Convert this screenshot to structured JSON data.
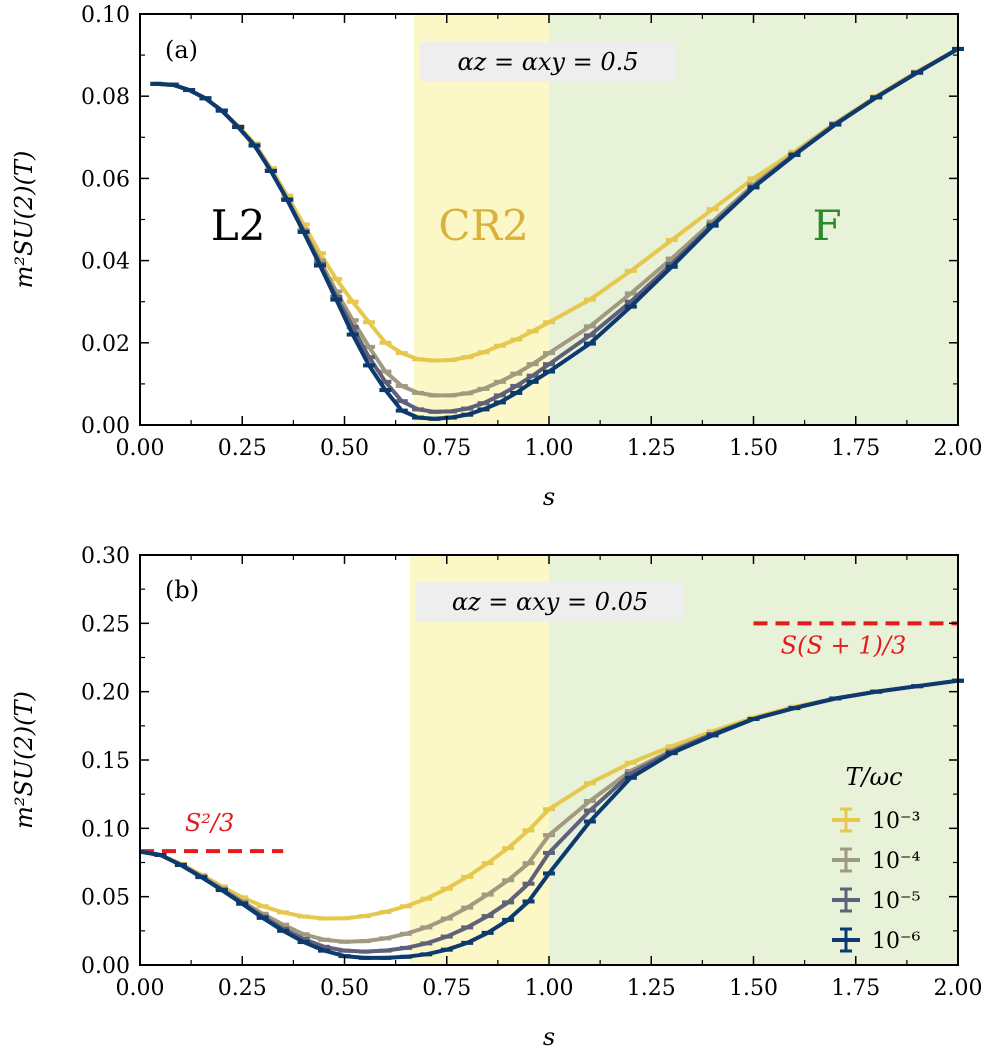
{
  "chart_data": [
    {
      "type": "line",
      "panel_label": "(a)",
      "parameter_label": "αz = αxy = 0.5",
      "xlabel": "s",
      "ylabel": "m²SU(2)(T)",
      "xlim": [
        0.0,
        2.0
      ],
      "ylim": [
        0.0,
        0.1
      ],
      "xticks": [
        "0.00",
        "0.25",
        "0.50",
        "0.75",
        "1.00",
        "1.25",
        "1.50",
        "1.75",
        "2.00"
      ],
      "yticks": [
        "0.00",
        "0.02",
        "0.04",
        "0.06",
        "0.08",
        "0.10"
      ],
      "phase_regions": [
        {
          "label": "L2",
          "from": 0.0,
          "to": 0.67,
          "color": "#ffffff",
          "text_color": "#000000",
          "label_x": 0.24,
          "label_y": 0.045
        },
        {
          "label": "CR2",
          "from": 0.67,
          "to": 1.0,
          "color": "#fbf7c6",
          "text_color": "#d9b13b",
          "label_x": 0.84,
          "label_y": 0.045
        },
        {
          "label": "F",
          "from": 1.0,
          "to": 2.0,
          "color": "#e8f2d9",
          "text_color": "#2b8a2b",
          "label_x": 1.68,
          "label_y": 0.045
        }
      ],
      "series": [
        {
          "name": "10⁻³",
          "color": "#e6c84e",
          "x": [
            0.04,
            0.08,
            0.12,
            0.16,
            0.2,
            0.24,
            0.28,
            0.32,
            0.36,
            0.4,
            0.44,
            0.48,
            0.52,
            0.56,
            0.6,
            0.64,
            0.68,
            0.72,
            0.76,
            0.8,
            0.84,
            0.88,
            0.92,
            0.96,
            1.0,
            1.1,
            1.2,
            1.3,
            1.4,
            1.5,
            1.6,
            1.7,
            1.8,
            1.9,
            2.0
          ],
          "y": [
            0.083,
            0.0828,
            0.0815,
            0.0795,
            0.0765,
            0.0727,
            0.0685,
            0.0625,
            0.0558,
            0.0488,
            0.0418,
            0.0355,
            0.03,
            0.025,
            0.02,
            0.0175,
            0.016,
            0.0157,
            0.0158,
            0.0165,
            0.0177,
            0.0193,
            0.0208,
            0.0228,
            0.025,
            0.0305,
            0.0375,
            0.045,
            0.0525,
            0.06,
            0.0665,
            0.0735,
            0.08,
            0.086,
            0.0915
          ]
        },
        {
          "name": "10⁻⁴",
          "color": "#a09a80",
          "x": [
            0.04,
            0.08,
            0.12,
            0.16,
            0.2,
            0.24,
            0.28,
            0.32,
            0.36,
            0.4,
            0.44,
            0.48,
            0.52,
            0.56,
            0.6,
            0.64,
            0.68,
            0.72,
            0.76,
            0.8,
            0.84,
            0.88,
            0.92,
            0.96,
            1.0,
            1.1,
            1.2,
            1.3,
            1.4,
            1.5,
            1.6,
            1.7,
            1.8,
            1.9,
            2.0
          ],
          "y": [
            0.083,
            0.0828,
            0.0815,
            0.0795,
            0.0765,
            0.0725,
            0.0682,
            0.062,
            0.055,
            0.0475,
            0.04,
            0.0325,
            0.0255,
            0.019,
            0.013,
            0.0095,
            0.0078,
            0.0072,
            0.0072,
            0.0077,
            0.0088,
            0.0105,
            0.0125,
            0.0148,
            0.0175,
            0.024,
            0.032,
            0.0405,
            0.0495,
            0.0585,
            0.066,
            0.0733,
            0.0798,
            0.0858,
            0.0915
          ]
        },
        {
          "name": "10⁻⁵",
          "color": "#5f6079",
          "x": [
            0.04,
            0.08,
            0.12,
            0.16,
            0.2,
            0.24,
            0.28,
            0.32,
            0.36,
            0.4,
            0.44,
            0.48,
            0.52,
            0.56,
            0.6,
            0.64,
            0.68,
            0.72,
            0.76,
            0.8,
            0.84,
            0.88,
            0.92,
            0.96,
            1.0,
            1.1,
            1.2,
            1.3,
            1.4,
            1.5,
            1.6,
            1.7,
            1.8,
            1.9,
            2.0
          ],
          "y": [
            0.083,
            0.0828,
            0.0815,
            0.0795,
            0.0765,
            0.0725,
            0.068,
            0.0618,
            0.0548,
            0.047,
            0.0392,
            0.0312,
            0.0238,
            0.0165,
            0.0105,
            0.0058,
            0.0038,
            0.0032,
            0.0033,
            0.004,
            0.0053,
            0.0072,
            0.0095,
            0.012,
            0.0148,
            0.0218,
            0.03,
            0.0392,
            0.0488,
            0.058,
            0.0658,
            0.0732,
            0.0797,
            0.0858,
            0.0915
          ]
        },
        {
          "name": "10⁻⁶",
          "color": "#0d3a6e",
          "x": [
            0.04,
            0.08,
            0.12,
            0.16,
            0.2,
            0.24,
            0.28,
            0.32,
            0.36,
            0.4,
            0.44,
            0.48,
            0.52,
            0.56,
            0.6,
            0.64,
            0.68,
            0.72,
            0.76,
            0.8,
            0.84,
            0.88,
            0.92,
            0.96,
            1.0,
            1.1,
            1.2,
            1.3,
            1.4,
            1.5,
            1.6,
            1.7,
            1.8,
            1.9,
            2.0
          ],
          "y": [
            0.083,
            0.0828,
            0.0815,
            0.0795,
            0.0765,
            0.0725,
            0.068,
            0.0618,
            0.0548,
            0.047,
            0.0388,
            0.0305,
            0.022,
            0.0145,
            0.0085,
            0.0035,
            0.0018,
            0.0015,
            0.0018,
            0.0025,
            0.0038,
            0.0055,
            0.0078,
            0.0105,
            0.013,
            0.0198,
            0.0288,
            0.0385,
            0.0485,
            0.0578,
            0.0657,
            0.0731,
            0.0797,
            0.0857,
            0.0915
          ]
        }
      ]
    },
    {
      "type": "line",
      "panel_label": "(b)",
      "parameter_label": "αz = αxy = 0.05",
      "xlabel": "s",
      "ylabel": "m²SU(2)(T)",
      "xlim": [
        0.0,
        2.0
      ],
      "ylim": [
        0.0,
        0.3
      ],
      "xticks": [
        "0.00",
        "0.25",
        "0.50",
        "0.75",
        "1.00",
        "1.25",
        "1.50",
        "1.75",
        "2.00"
      ],
      "yticks": [
        "0.00",
        "0.05",
        "0.10",
        "0.15",
        "0.20",
        "0.25",
        "0.30"
      ],
      "phase_regions": [
        {
          "label": "",
          "from": 0.0,
          "to": 0.66,
          "color": "#ffffff"
        },
        {
          "label": "",
          "from": 0.66,
          "to": 1.0,
          "color": "#fbf7c6"
        },
        {
          "label": "",
          "from": 1.0,
          "to": 2.0,
          "color": "#e8f2d9"
        }
      ],
      "reference_lines": [
        {
          "label": "S²/3",
          "value": 0.0833,
          "from": 0.0,
          "to": 0.35,
          "color": "#e41a1c",
          "label_x": 0.17,
          "label_y": 0.098
        },
        {
          "label": "S(S + 1)/3",
          "value": 0.25,
          "from": 1.5,
          "to": 2.0,
          "color": "#e41a1c",
          "label_x": 1.72,
          "label_y": 0.228
        }
      ],
      "legend": {
        "title": "T/ωc",
        "placement": "lower-right",
        "entries": [
          "10⁻³",
          "10⁻⁴",
          "10⁻⁵",
          "10⁻⁶"
        ]
      },
      "series": [
        {
          "name": "10⁻³",
          "color": "#e6c84e",
          "x": [
            0.0,
            0.05,
            0.1,
            0.15,
            0.2,
            0.25,
            0.3,
            0.35,
            0.4,
            0.45,
            0.5,
            0.55,
            0.6,
            0.65,
            0.7,
            0.75,
            0.8,
            0.85,
            0.9,
            0.95,
            1.0,
            1.1,
            1.2,
            1.3,
            1.4,
            1.5,
            1.6,
            1.7,
            1.8,
            1.9,
            2.0
          ],
          "y": [
            0.083,
            0.0805,
            0.074,
            0.066,
            0.0575,
            0.0495,
            0.043,
            0.0385,
            0.0355,
            0.034,
            0.0342,
            0.0358,
            0.0388,
            0.043,
            0.0485,
            0.0558,
            0.0645,
            0.0745,
            0.0855,
            0.0985,
            0.114,
            0.133,
            0.148,
            0.16,
            0.171,
            0.181,
            0.189,
            0.195,
            0.2,
            0.204,
            0.208
          ]
        },
        {
          "name": "10⁻⁴",
          "color": "#a09a80",
          "x": [
            0.0,
            0.05,
            0.1,
            0.15,
            0.2,
            0.25,
            0.3,
            0.35,
            0.4,
            0.45,
            0.5,
            0.55,
            0.6,
            0.65,
            0.7,
            0.75,
            0.8,
            0.85,
            0.9,
            0.95,
            1.0,
            1.1,
            1.2,
            1.3,
            1.4,
            1.5,
            1.6,
            1.7,
            1.8,
            1.9,
            2.0
          ],
          "y": [
            0.083,
            0.0805,
            0.0735,
            0.065,
            0.056,
            0.0465,
            0.0375,
            0.0295,
            0.0225,
            0.0185,
            0.017,
            0.0175,
            0.0195,
            0.0228,
            0.0275,
            0.034,
            0.042,
            0.0515,
            0.062,
            0.0745,
            0.095,
            0.12,
            0.142,
            0.157,
            0.169,
            0.18,
            0.188,
            0.195,
            0.2,
            0.204,
            0.208
          ]
        },
        {
          "name": "10⁻⁵",
          "color": "#5f6079",
          "x": [
            0.0,
            0.05,
            0.1,
            0.15,
            0.2,
            0.25,
            0.3,
            0.35,
            0.4,
            0.45,
            0.5,
            0.55,
            0.6,
            0.65,
            0.7,
            0.75,
            0.8,
            0.85,
            0.9,
            0.95,
            1.0,
            1.1,
            1.2,
            1.3,
            1.4,
            1.5,
            1.6,
            1.7,
            1.8,
            1.9,
            2.0
          ],
          "y": [
            0.083,
            0.0805,
            0.0732,
            0.0645,
            0.0552,
            0.0455,
            0.0355,
            0.0265,
            0.019,
            0.0133,
            0.0105,
            0.0098,
            0.0105,
            0.0125,
            0.0158,
            0.0208,
            0.0275,
            0.0358,
            0.0458,
            0.0595,
            0.082,
            0.113,
            0.14,
            0.156,
            0.169,
            0.18,
            0.188,
            0.195,
            0.2,
            0.204,
            0.208
          ]
        },
        {
          "name": "10⁻⁶",
          "color": "#0d3a6e",
          "x": [
            0.0,
            0.05,
            0.1,
            0.15,
            0.2,
            0.25,
            0.3,
            0.35,
            0.4,
            0.45,
            0.5,
            0.55,
            0.6,
            0.65,
            0.7,
            0.75,
            0.8,
            0.85,
            0.9,
            0.95,
            1.0,
            1.1,
            1.2,
            1.3,
            1.4,
            1.5,
            1.6,
            1.7,
            1.8,
            1.9,
            2.0
          ],
          "y": [
            0.083,
            0.0805,
            0.0732,
            0.0643,
            0.0548,
            0.0448,
            0.0345,
            0.025,
            0.0168,
            0.0105,
            0.0065,
            0.0052,
            0.0052,
            0.006,
            0.0078,
            0.0112,
            0.0162,
            0.0235,
            0.033,
            0.0465,
            0.067,
            0.105,
            0.137,
            0.155,
            0.168,
            0.18,
            0.188,
            0.195,
            0.2,
            0.204,
            0.208
          ]
        }
      ]
    }
  ]
}
